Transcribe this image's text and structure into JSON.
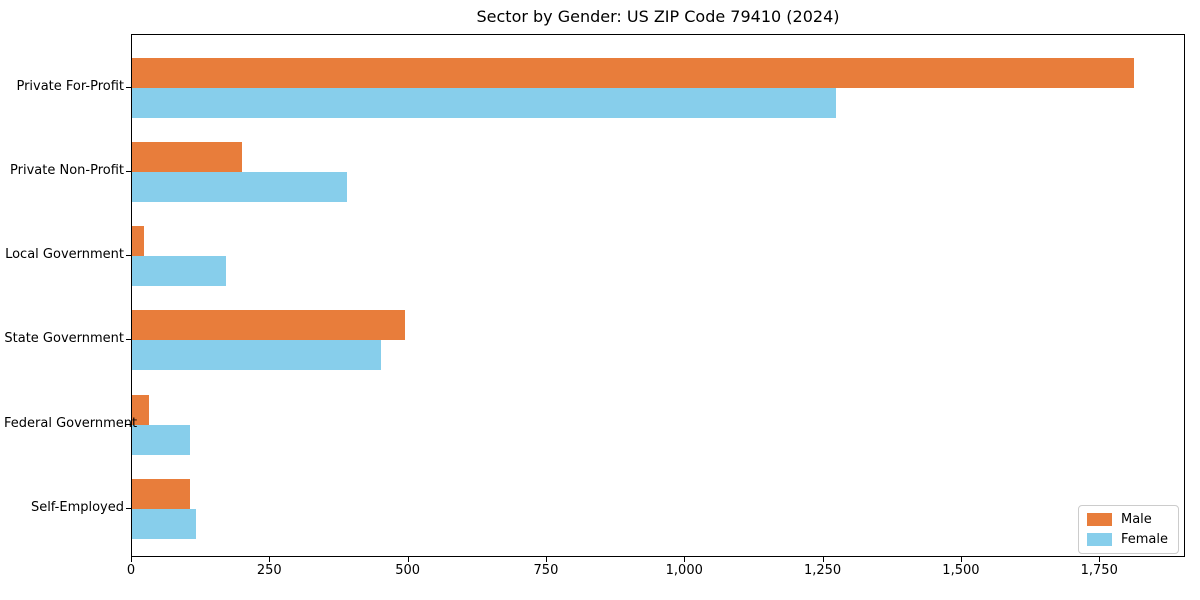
{
  "title": "Sector by Gender: US ZIP Code 79410 (2024)",
  "colors": {
    "male": "#e87d3b",
    "female": "#87ceeb",
    "spine": "#000000",
    "legend_border": "#cccccc",
    "background": "#ffffff"
  },
  "legend": {
    "position": "lower right",
    "items": [
      {
        "label": "Male",
        "color": "#e87d3b"
      },
      {
        "label": "Female",
        "color": "#87ceeb"
      }
    ]
  },
  "chart_data": {
    "type": "bar",
    "orientation": "horizontal",
    "title": "Sector by Gender: US ZIP Code 79410 (2024)",
    "xlabel": "",
    "ylabel": "",
    "categories": [
      "Private For-Profit",
      "Private Non-Profit",
      "Local Government",
      "State Government",
      "Federal Government",
      "Self-Employed"
    ],
    "series": [
      {
        "name": "Male",
        "color": "#e87d3b",
        "values": [
          1815,
          200,
          22,
          495,
          30,
          105
        ]
      },
      {
        "name": "Female",
        "color": "#87ceeb",
        "values": [
          1275,
          390,
          170,
          450,
          105,
          115
        ]
      }
    ],
    "xlim": [
      0,
      1905
    ],
    "xticks": [
      0,
      250,
      500,
      750,
      1000,
      1250,
      1500,
      1750
    ],
    "xtick_labels": [
      "0",
      "250",
      "500",
      "750",
      "1,000",
      "1,250",
      "1,500",
      "1,750"
    ],
    "grid": false,
    "legend_position": "lower right"
  }
}
